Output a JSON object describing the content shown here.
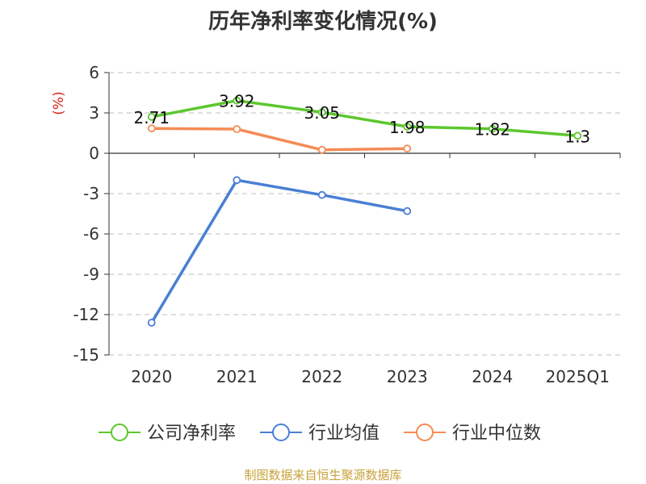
{
  "title": "历年净利率变化情况(%)",
  "source": "制图数据来自恒生聚源数据库",
  "colors": {
    "company": "#5cc72e",
    "industry_avg": "#4a7fd4",
    "industry_median": "#f58b55",
    "ylabel": "#d9231b",
    "source": "#c8a23a",
    "text": "#333333",
    "grid": "#cccccc",
    "axis": "#333333"
  },
  "chart_data": {
    "type": "line",
    "title": "历年净利率变化情况(%)",
    "ylabel": "(%)",
    "categories": [
      "2020",
      "2021",
      "2022",
      "2023",
      "2024",
      "2025Q1"
    ],
    "ylim": [
      -15,
      6
    ],
    "yticks": [
      6,
      3,
      0,
      -3,
      -6,
      -9,
      -12,
      -15
    ],
    "yticklabels": [
      "6",
      "3",
      "0",
      "-3",
      "-6",
      "-9",
      "-12",
      "-15"
    ],
    "grid": true,
    "legend": "bottom",
    "series": [
      {
        "name": "公司净利率",
        "color": "#5cc72e",
        "values": [
          2.71,
          3.92,
          3.05,
          1.98,
          1.82,
          1.3
        ],
        "labels": [
          "2.71",
          "3.92",
          "3.05",
          "1.98",
          "1.82",
          "1.3"
        ],
        "show_labels": true
      },
      {
        "name": "行业均值",
        "color": "#4a7fd4",
        "values": [
          -12.6,
          -2.0,
          -3.1,
          -4.3,
          null,
          null
        ],
        "show_labels": false
      },
      {
        "name": "行业中位数",
        "color": "#f58b55",
        "values": [
          1.85,
          1.8,
          0.25,
          0.35,
          null,
          null
        ],
        "show_labels": false
      }
    ]
  }
}
